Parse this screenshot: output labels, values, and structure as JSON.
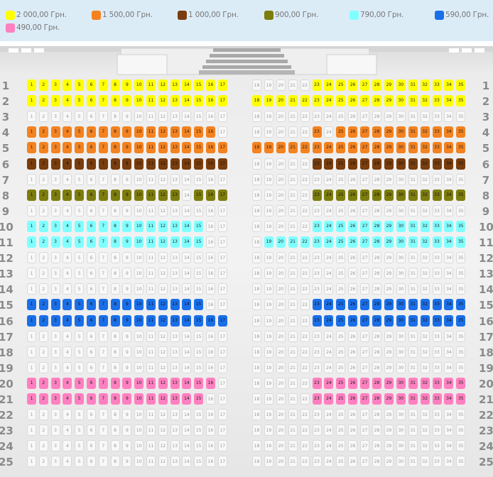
{
  "legend": [
    {
      "label": "2 000,00  Грн.",
      "color": "#ffff00"
    },
    {
      "label": "1 500,00  Грн.",
      "color": "#f4821f"
    },
    {
      "label": "1 000,00  Грн.",
      "color": "#7a3d0d"
    },
    {
      "label": "900,00  Грн.",
      "color": "#7d7d0d"
    },
    {
      "label": "790,00  Грн.",
      "color": "#80ffff"
    },
    {
      "label": "590,00  Грн.",
      "color": "#1a6fe8"
    },
    {
      "label": "490,00  Грн.",
      "color": "#ff80c0"
    }
  ],
  "rows": [
    "1",
    "2",
    "3",
    "4",
    "5",
    "6",
    "7",
    "8",
    "9",
    "10",
    "11",
    "12",
    "13",
    "14",
    "15",
    "16",
    "17",
    "18",
    "19",
    "20",
    "21",
    "22",
    "23",
    "24",
    "25"
  ],
  "seat_numbers": {
    "left": [
      "1",
      "2",
      "3",
      "4",
      "5",
      "6",
      "7",
      "8",
      "9",
      "10",
      "11",
      "12",
      "13",
      "14",
      "15",
      "16",
      "17"
    ],
    "right": [
      "18",
      "19",
      "20",
      "21",
      "22",
      "23",
      "24",
      "25",
      "26",
      "27",
      "28",
      "29",
      "30",
      "31",
      "32",
      "33",
      "34",
      "35"
    ]
  },
  "row_tiers": {
    "1": {
      "left": [
        "y",
        1,
        17
      ],
      "right": [
        [
          "y",
          23,
          35
        ]
      ]
    },
    "2": {
      "left": [
        "y",
        1,
        17
      ],
      "right": [
        [
          "y",
          18,
          35
        ]
      ]
    },
    "4": {
      "left": [
        "o",
        1,
        16
      ],
      "right": [
        [
          "o",
          23,
          23
        ],
        [
          "o",
          25,
          35
        ]
      ]
    },
    "5": {
      "left": [
        "o",
        1,
        17
      ],
      "right": [
        [
          "o",
          18,
          35
        ]
      ]
    },
    "6": {
      "left": [
        "b",
        1,
        17
      ],
      "right": [
        [
          "b",
          23,
          35
        ]
      ]
    },
    "8": {
      "left": [
        "ol",
        1,
        13
      ],
      "left2": [
        "ol",
        15,
        17
      ],
      "right": [
        [
          "ol",
          23,
          35
        ]
      ]
    },
    "10": {
      "left": [
        "c",
        1,
        15
      ],
      "right": [
        [
          "c",
          23,
          35
        ]
      ]
    },
    "11": {
      "left": [
        "c",
        1,
        15
      ],
      "right": [
        [
          "c",
          19,
          35
        ]
      ]
    },
    "15": {
      "left": [
        "bl",
        1,
        15
      ],
      "right": [
        [
          "bl",
          23,
          35
        ]
      ]
    },
    "16": {
      "left": [
        "bl",
        1,
        17
      ],
      "right": [
        [
          "bl",
          23,
          35
        ]
      ]
    },
    "20": {
      "left": [
        "p",
        1,
        16
      ],
      "right": [
        [
          "p",
          23,
          35
        ]
      ]
    },
    "21": {
      "left": [
        "p",
        1,
        15
      ],
      "right": [
        [
          "p",
          23,
          35
        ]
      ]
    }
  },
  "tier_colors": {
    "y": "#ffff00",
    "o": "#f4821f",
    "b": "#7a3d0d",
    "ol": "#7d7d0d",
    "c": "#80ffff",
    "bl": "#1a6fe8",
    "p": "#ff80c0"
  }
}
